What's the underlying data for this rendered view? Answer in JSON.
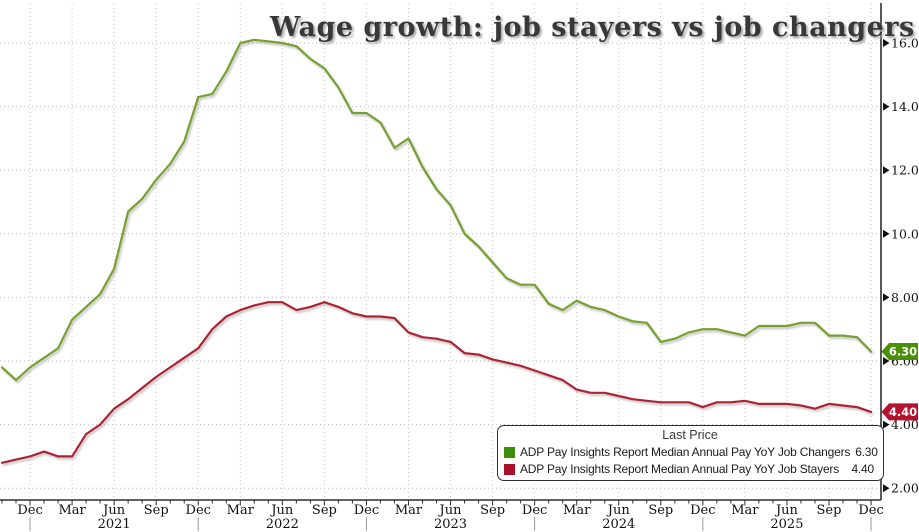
{
  "title": "Wage growth: job stayers vs job changers",
  "legend": {
    "title": "Last Price"
  },
  "chart_data": {
    "type": "line",
    "x_start": "Oct 2020",
    "x_end": "Dec 2025",
    "frequency": "monthly",
    "x_tick_labels": [
      "Dec",
      "Mar",
      "Jun",
      "Sep",
      "Dec",
      "Mar",
      "Jun",
      "Sep",
      "Dec",
      "Mar",
      "Jun",
      "Sep",
      "Dec",
      "Mar",
      "Jun",
      "Sep",
      "Dec",
      "Mar",
      "Jun",
      "Sep",
      "Dec"
    ],
    "x_year_labels": [
      "2021",
      "2022",
      "2023",
      "2024",
      "2025"
    ],
    "y_tick_labels": [
      "2.00",
      "4.00",
      "6.00",
      "8.00",
      "10.00",
      "12.00",
      "14.00",
      "16.00"
    ],
    "ylim": [
      2,
      16
    ],
    "grid": "dotted",
    "legend_position": "bottom-right",
    "series": [
      {
        "name": "Job Changers",
        "legend_label": "ADP Pay Insights Report Median Annual Pay YoY Job Changers",
        "last_label": "6.30",
        "last_value": 6.3,
        "color": "#76a12f",
        "swatch_color": "#3e8e0e",
        "badge_color": "#4a9007",
        "values": [
          5.8,
          5.4,
          5.8,
          6.1,
          6.4,
          7.3,
          7.7,
          8.1,
          8.9,
          10.7,
          11.1,
          11.7,
          12.2,
          12.9,
          14.3,
          14.4,
          15.1,
          16.0,
          16.1,
          16.05,
          16.0,
          15.9,
          15.5,
          15.2,
          14.6,
          13.8,
          13.8,
          13.5,
          12.7,
          13.0,
          12.1,
          11.4,
          10.9,
          10.0,
          9.6,
          9.1,
          8.6,
          8.4,
          8.4,
          7.8,
          7.6,
          7.9,
          7.7,
          7.6,
          7.4,
          7.25,
          7.2,
          6.6,
          6.7,
          6.9,
          7.0,
          7.0,
          6.9,
          6.8,
          7.1,
          7.1,
          7.1,
          7.2,
          7.2,
          6.8,
          6.8,
          6.75,
          6.3
        ]
      },
      {
        "name": "Job Stayers",
        "legend_label": "ADP Pay Insights Report Median Annual Pay YoY Job Stayers",
        "last_label": "4.40",
        "last_value": 4.4,
        "color": "#ae2335",
        "swatch_color": "#a8102e",
        "badge_color": "#b5122f",
        "values": [
          2.8,
          2.9,
          3.0,
          3.15,
          3.0,
          3.0,
          3.7,
          4.0,
          4.5,
          4.8,
          5.15,
          5.5,
          5.8,
          6.1,
          6.4,
          7.0,
          7.4,
          7.6,
          7.75,
          7.85,
          7.85,
          7.6,
          7.7,
          7.85,
          7.7,
          7.5,
          7.4,
          7.4,
          7.35,
          6.9,
          6.75,
          6.7,
          6.6,
          6.25,
          6.2,
          6.05,
          5.95,
          5.85,
          5.7,
          5.55,
          5.4,
          5.1,
          5.0,
          5.0,
          4.9,
          4.8,
          4.75,
          4.7,
          4.7,
          4.7,
          4.55,
          4.7,
          4.7,
          4.75,
          4.65,
          4.65,
          4.65,
          4.6,
          4.5,
          4.65,
          4.6,
          4.55,
          4.4
        ]
      }
    ]
  }
}
